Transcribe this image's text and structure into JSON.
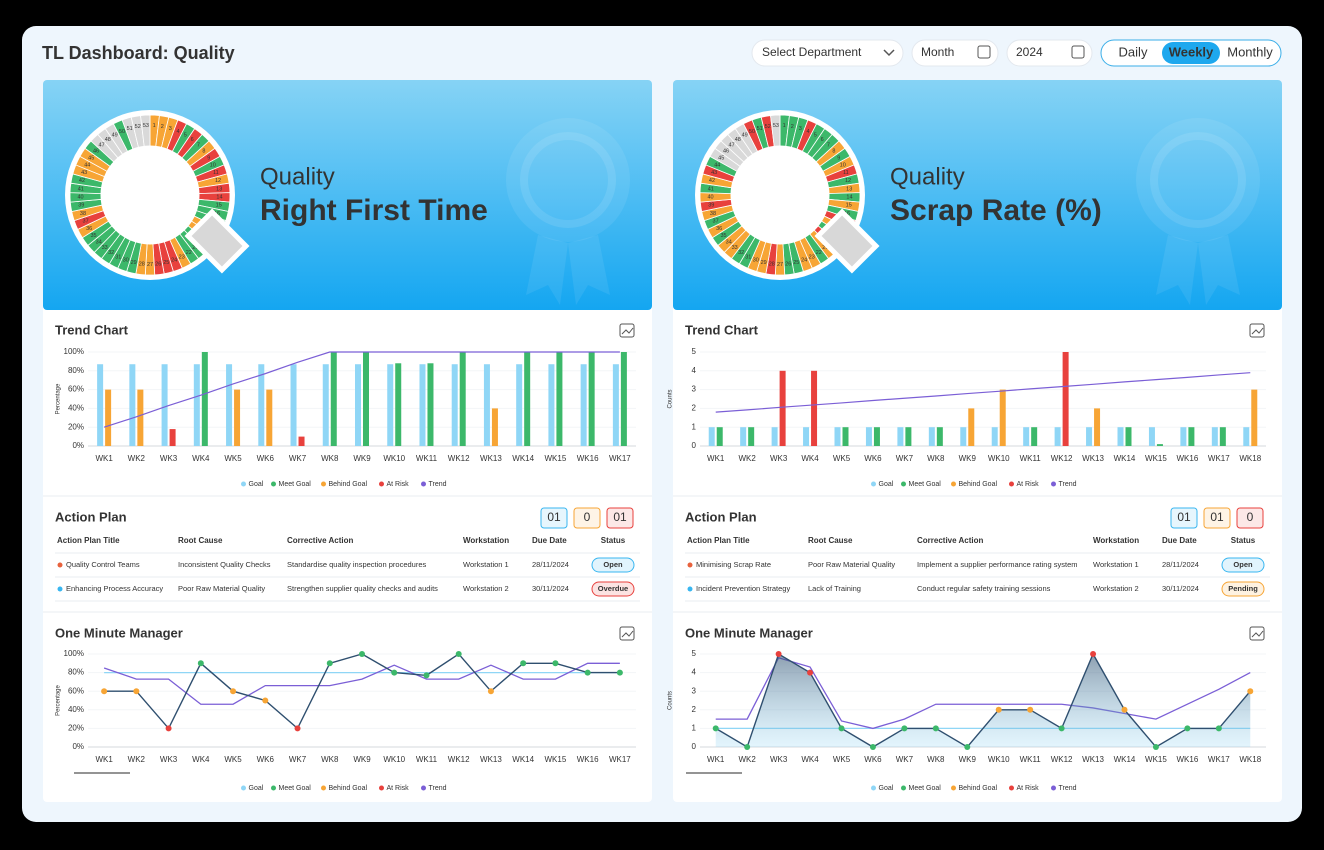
{
  "header": {
    "title": "TL Dashboard: Quality",
    "department": "Select Department",
    "month": "Month",
    "year": "2024",
    "toggle": [
      "Daily",
      "Weekly",
      "Monthly"
    ],
    "active": 1
  },
  "panels": [
    {
      "hero": {
        "kicker": "Quality",
        "title": "Right First Time"
      },
      "ring": {
        "labels": [
          1,
          2,
          3,
          4,
          5,
          6,
          7,
          8,
          9,
          10,
          11,
          12,
          13,
          14,
          15,
          16,
          17,
          18,
          19,
          20,
          21,
          22,
          23,
          24,
          25,
          26,
          27,
          28,
          29,
          30,
          31,
          32,
          33,
          34,
          35,
          36,
          37,
          38,
          39,
          40,
          41,
          42,
          43,
          44,
          45,
          46,
          47,
          48,
          49,
          50,
          51,
          52,
          53
        ],
        "colors": [
          "#f7a535",
          "#f7a535",
          "#f7a535",
          "#e8413d",
          "#3cb86a",
          "#e8413d",
          "#3cb86a",
          "#f7a535",
          "#e8413d",
          "#3cb86a",
          "#e8413d",
          "#f7a535",
          "#e8413d",
          "#e8413d",
          "#3cb86a",
          "#3cb86a",
          "#3cb86a",
          "#f7a535",
          "#f7a535",
          "#3cb86a",
          "#3cb86a",
          "#3cb86a",
          "#f7a535",
          "#e8413d",
          "#e8413d",
          "#e8413d",
          "#f7a535",
          "#f7a535",
          "#3cb86a",
          "#3cb86a",
          "#3cb86a",
          "#3cb86a",
          "#3cb86a",
          "#3cb86a",
          "#3cb86a",
          "#f7a535",
          "#e8413d",
          "#f7a535",
          "#3cb86a",
          "#3cb86a",
          "#3cb86a",
          "#3cb86a",
          "#f7a535",
          "#f7a535",
          "#f7a535",
          "#3cb86a",
          "#d9d9d9",
          "#d9d9d9",
          "#d9d9d9",
          "#3cb86a",
          "#d9d9d9",
          "#d9d9d9",
          "#d9d9d9"
        ]
      },
      "trend_title": "Trend Chart",
      "plan_title": "Action Plan",
      "omm_title": "One Minute Manager",
      "badges": [
        {
          "text": "01",
          "color": "#38b6f0"
        },
        {
          "text": "0",
          "color": "#f7a535"
        },
        {
          "text": "01",
          "color": "#e8413d"
        }
      ],
      "columns": [
        "Action Plan Title",
        "Root Cause",
        "Corrective Action",
        "Workstation",
        "Due Date",
        "Status"
      ],
      "rows": [
        {
          "cells": [
            "Quality Control Teams",
            "Inconsistent Quality Checks",
            "Standardise quality inspection procedures",
            "Workstation 1",
            "28/11/2024",
            "Open"
          ],
          "dot": "#e8623d",
          "status_color": "#38b6f0"
        },
        {
          "cells": [
            "Enhancing Process Accuracy",
            "Poor Raw Material Quality",
            "Strengthen supplier quality checks and audits",
            "Workstation 2",
            "30/11/2024",
            "Overdue"
          ],
          "dot": "#38b6f0",
          "status_color": "#e8413d"
        }
      ]
    },
    {
      "hero": {
        "kicker": "Quality",
        "title": "Scrap Rate (%)"
      },
      "ring": {
        "labels": [
          1,
          2,
          3,
          4,
          5,
          6,
          7,
          8,
          9,
          10,
          11,
          12,
          13,
          14,
          15,
          16,
          17,
          18,
          19,
          20,
          21,
          22,
          23,
          24,
          25,
          26,
          27,
          28,
          29,
          30,
          31,
          32,
          33,
          34,
          35,
          36,
          37,
          38,
          39,
          40,
          41,
          42,
          43,
          44,
          45,
          46,
          47,
          48,
          49,
          50,
          51,
          52,
          53
        ],
        "colors": [
          "#3cb86a",
          "#3cb86a",
          "#3cb86a",
          "#e8413d",
          "#3cb86a",
          "#3cb86a",
          "#3cb86a",
          "#f7a535",
          "#3cb86a",
          "#f7a535",
          "#e8413d",
          "#3cb86a",
          "#f7a535",
          "#3cb86a",
          "#f7a535",
          "#3cb86a",
          "#e8413d",
          "#f7a535",
          "#3cb86a",
          "#e8413d",
          "#f7a535",
          "#3cb86a",
          "#f7a535",
          "#f7a535",
          "#3cb86a",
          "#3cb86a",
          "#f7a535",
          "#e8413d",
          "#f7a535",
          "#f7a535",
          "#3cb86a",
          "#3cb86a",
          "#f7a535",
          "#f7a535",
          "#3cb86a",
          "#f7a535",
          "#3cb86a",
          "#f7a535",
          "#e8413d",
          "#f7a535",
          "#3cb86a",
          "#f7a535",
          "#e8413d",
          "#3cb86a",
          "#d9d9d9",
          "#d9d9d9",
          "#d9d9d9",
          "#d9d9d9",
          "#d9d9d9",
          "#e8413d",
          "#3cb86a",
          "#e8413d",
          "#d9d9d9"
        ]
      },
      "trend_title": "Trend Chart",
      "plan_title": "Action Plan",
      "omm_title": "One Minute Manager",
      "badges": [
        {
          "text": "01",
          "color": "#38b6f0"
        },
        {
          "text": "01",
          "color": "#f7a535"
        },
        {
          "text": "0",
          "color": "#e8413d"
        }
      ],
      "columns": [
        "Action Plan Title",
        "Root Cause",
        "Corrective Action",
        "Workstation",
        "Due Date",
        "Status"
      ],
      "rows": [
        {
          "cells": [
            "Minimising Scrap Rate",
            "Poor Raw Material Quality",
            "Implement a supplier performance rating system",
            "Workstation 1",
            "28/11/2024",
            "Open"
          ],
          "dot": "#e8623d",
          "status_color": "#38b6f0"
        },
        {
          "cells": [
            "Incident Prevention Strategy",
            "Lack of Training",
            "Conduct regular safety training sessions",
            "Workstation 2",
            "30/11/2024",
            "Pending"
          ],
          "dot": "#38b6f0",
          "status_color": "#f7a535"
        }
      ]
    }
  ],
  "chart_data": [
    {
      "type": "bar",
      "ylabel": "Percentage",
      "categories": [
        "WK1",
        "WK2",
        "WK3",
        "WK4",
        "WK5",
        "WK6",
        "WK7",
        "WK8",
        "WK9",
        "WK10",
        "WK11",
        "WK12",
        "WK13",
        "WK14",
        "WK15",
        "WK16",
        "WK17"
      ],
      "ylim": [
        0,
        100
      ],
      "yticks": [
        {
          "value": 0,
          "label": "0%"
        },
        {
          "value": 20,
          "label": "20%"
        },
        {
          "value": 40,
          "label": "40%"
        },
        {
          "value": 60,
          "label": "60%"
        },
        {
          "value": 80,
          "label": "80%"
        },
        {
          "value": 100,
          "label": "100%"
        }
      ],
      "series": [
        {
          "color": "#8fd6f6",
          "values": [
            87,
            87,
            87,
            87,
            87,
            87,
            87,
            87,
            87,
            87,
            87,
            87,
            87,
            87,
            87,
            87,
            87
          ]
        },
        {
          "color": "#3cb86a",
          "values": [
            null,
            null,
            null,
            100,
            null,
            null,
            null,
            100,
            100,
            88,
            88,
            100,
            null,
            100,
            100,
            100,
            100
          ]
        },
        {
          "color": "#f7a535",
          "values": [
            60,
            60,
            null,
            null,
            60,
            60,
            null,
            null,
            null,
            null,
            null,
            null,
            40,
            null,
            null,
            null,
            null
          ]
        },
        {
          "color": "#e8413d",
          "values": [
            null,
            null,
            18,
            null,
            null,
            null,
            10,
            null,
            null,
            null,
            null,
            null,
            null,
            null,
            null,
            null,
            null
          ]
        },
        {
          "type": "line",
          "color": "#7b5fd6",
          "values": [
            20,
            31,
            43,
            54,
            66,
            77,
            89,
            100,
            100,
            100,
            100,
            100,
            100,
            100,
            100,
            100,
            100
          ]
        }
      ],
      "legend": [
        {
          "name": "Goal",
          "color": "#8fd6f6"
        },
        {
          "name": "Meet Goal",
          "color": "#3cb86a"
        },
        {
          "name": "Behind Goal",
          "color": "#f7a535"
        },
        {
          "name": "At Risk",
          "color": "#e8413d"
        },
        {
          "name": "Trend",
          "color": "#7b5fd6"
        }
      ]
    },
    {
      "type": "bar",
      "ylabel": "Counts",
      "categories": [
        "WK1",
        "WK2",
        "WK3",
        "WK4",
        "WK5",
        "WK6",
        "WK7",
        "WK8",
        "WK9",
        "WK10",
        "WK11",
        "WK12",
        "WK13",
        "WK14",
        "WK15",
        "WK16",
        "WK17",
        "WK18"
      ],
      "ylim": [
        0,
        5
      ],
      "yticks": [
        0,
        1,
        2,
        3,
        4,
        5
      ],
      "series": [
        {
          "color": "#8fd6f6",
          "values": [
            1,
            1,
            1,
            1,
            1,
            1,
            1,
            1,
            1,
            1,
            1,
            1,
            1,
            1,
            1,
            1,
            1,
            1
          ]
        },
        {
          "color": "#3cb86a",
          "values": [
            1,
            1,
            null,
            null,
            1,
            1,
            1,
            1,
            null,
            null,
            1,
            null,
            null,
            1,
            0.1,
            1,
            1,
            null
          ]
        },
        {
          "color": "#f7a535",
          "values": [
            null,
            null,
            null,
            null,
            null,
            null,
            null,
            null,
            2,
            3,
            null,
            null,
            2,
            null,
            null,
            null,
            null,
            3
          ]
        },
        {
          "color": "#e8413d",
          "values": [
            null,
            null,
            4,
            4,
            null,
            null,
            null,
            null,
            null,
            null,
            null,
            5,
            null,
            null,
            null,
            null,
            null,
            null
          ]
        },
        {
          "type": "line",
          "color": "#7b5fd6",
          "values": [
            1.8,
            1.92,
            2.05,
            2.17,
            2.29,
            2.42,
            2.54,
            2.66,
            2.79,
            2.91,
            3.04,
            3.16,
            3.28,
            3.41,
            3.53,
            3.65,
            3.78,
            3.9
          ]
        }
      ],
      "legend": [
        {
          "name": "Goal",
          "color": "#8fd6f6"
        },
        {
          "name": "Meet Goal",
          "color": "#3cb86a"
        },
        {
          "name": "Behind Goal",
          "color": "#f7a535"
        },
        {
          "name": "At Risk",
          "color": "#e8413d"
        },
        {
          "name": "Trend",
          "color": "#7b5fd6"
        }
      ]
    },
    {
      "type": "line",
      "ylabel": "Percentage",
      "categories": [
        "WK1",
        "WK2",
        "WK3",
        "WK4",
        "WK5",
        "WK6",
        "WK7",
        "WK8",
        "WK9",
        "WK10",
        "WK11",
        "WK12",
        "WK13",
        "WK14",
        "WK15",
        "WK16",
        "WK17"
      ],
      "ylim": [
        0,
        100
      ],
      "yticks": [
        {
          "value": 0,
          "label": "0%"
        },
        {
          "value": 20,
          "label": "20%"
        },
        {
          "value": 40,
          "label": "40%"
        },
        {
          "value": 60,
          "label": "60%"
        },
        {
          "value": 80,
          "label": "80%"
        },
        {
          "value": 100,
          "label": "100%"
        }
      ],
      "series": [
        {
          "type": "line",
          "color": "#8fd6f6",
          "values": [
            80,
            80,
            80,
            80,
            80,
            80,
            80,
            80,
            80,
            80,
            80,
            80,
            80,
            80,
            80,
            80,
            80
          ]
        },
        {
          "type": "line",
          "color": "#7b5fd6",
          "values": [
            85,
            73,
            73,
            46,
            46,
            66,
            66,
            66,
            73,
            88,
            73,
            73,
            88,
            73,
            73,
            90,
            90
          ]
        },
        {
          "color": "#2f4f6f",
          "values": [
            60,
            60,
            20,
            90,
            60,
            50,
            20,
            90,
            100,
            80,
            77,
            100,
            60,
            90,
            90,
            80,
            80
          ],
          "point_colors": [
            "#f7a535",
            "#f7a535",
            "#e8413d",
            "#3cb86a",
            "#f7a535",
            "#f7a535",
            "#e8413d",
            "#3cb86a",
            "#3cb86a",
            "#3cb86a",
            "#3cb86a",
            "#3cb86a",
            "#f7a535",
            "#3cb86a",
            "#3cb86a",
            "#3cb86a",
            "#3cb86a"
          ]
        }
      ],
      "legend": [
        {
          "name": "Goal",
          "color": "#8fd6f6"
        },
        {
          "name": "Meet Goal",
          "color": "#3cb86a"
        },
        {
          "name": "Behind Goal",
          "color": "#f7a535"
        },
        {
          "name": "At Risk",
          "color": "#e8413d"
        },
        {
          "name": "Trend",
          "color": "#7b5fd6"
        }
      ]
    },
    {
      "type": "line",
      "ylabel": "Counts",
      "categories": [
        "WK1",
        "WK2",
        "WK3",
        "WK4",
        "WK5",
        "WK6",
        "WK7",
        "WK8",
        "WK9",
        "WK10",
        "WK11",
        "WK12",
        "WK13",
        "WK14",
        "WK15",
        "WK16",
        "WK17",
        "WK18"
      ],
      "ylim": [
        0,
        5
      ],
      "yticks": [
        0,
        1,
        2,
        3,
        4,
        5
      ],
      "series": [
        {
          "type": "line",
          "color": "#8fd6f6",
          "values": [
            1,
            1,
            1,
            1,
            1,
            1,
            1,
            1,
            1,
            1,
            1,
            1,
            1,
            1,
            1,
            1,
            1,
            1
          ]
        },
        {
          "type": "line",
          "color": "#7b5fd6",
          "values": [
            1.5,
            1.5,
            4.8,
            4.3,
            1.4,
            1,
            1.5,
            2.3,
            2.3,
            2.3,
            2.3,
            2.3,
            2.1,
            1.8,
            1.5,
            2.3,
            3.1,
            4
          ]
        },
        {
          "color": "#2f4f6f",
          "area": true,
          "values": [
            1,
            0,
            5,
            4,
            1,
            0,
            1,
            1,
            0,
            2,
            2,
            1,
            5,
            2,
            0,
            1,
            1,
            3
          ],
          "point_colors": [
            "#3cb86a",
            "#3cb86a",
            "#e8413d",
            "#e8413d",
            "#3cb86a",
            "#3cb86a",
            "#3cb86a",
            "#3cb86a",
            "#3cb86a",
            "#f7a535",
            "#f7a535",
            "#3cb86a",
            "#e8413d",
            "#f7a535",
            "#3cb86a",
            "#3cb86a",
            "#3cb86a",
            "#f7a535"
          ]
        }
      ],
      "legend": [
        {
          "name": "Goal",
          "color": "#8fd6f6"
        },
        {
          "name": "Meet Goal",
          "color": "#3cb86a"
        },
        {
          "name": "Behind Goal",
          "color": "#f7a535"
        },
        {
          "name": "At Risk",
          "color": "#e8413d"
        },
        {
          "name": "Trend",
          "color": "#7b5fd6"
        }
      ]
    }
  ]
}
